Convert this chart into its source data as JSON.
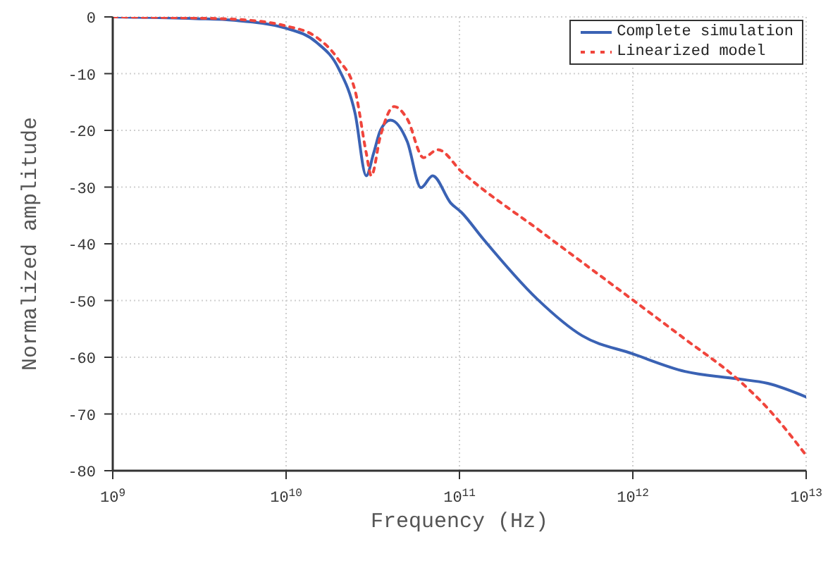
{
  "chart_data": {
    "type": "line",
    "xlabel": "Frequency (Hz)",
    "ylabel": "Normalized amplitude",
    "log": "x",
    "grid": true,
    "legend": "top right",
    "marker": "none",
    "xlim": [
      1000000000,
      10000000000000
    ],
    "xticks": [
      {
        "value": 1000000000,
        "label": "10$^{9}$"
      },
      {
        "value": 10000000000,
        "label": "10$^{10}$"
      },
      {
        "value": 100000000000,
        "label": "10$^{11}$"
      },
      {
        "value": 1000000000000,
        "label": "10$^{12}$"
      },
      {
        "value": 10000000000000,
        "label": "10$^{13}$"
      }
    ],
    "ylim": [
      -80,
      0
    ],
    "yticks": [
      -80,
      -70,
      -60,
      -50,
      -40,
      -30,
      -20,
      -10,
      0
    ],
    "series": [
      {
        "name": "Complete simulation",
        "color": "#3a62b4",
        "line_style": "solid",
        "x": [
          1000000000,
          3000000000,
          5000000000,
          10000000000,
          15000000000,
          20000000000,
          25000000000,
          29000000000,
          32000000000,
          35000000000,
          40000000000,
          50000000000,
          60000000000,
          70000000000,
          89000000000,
          103000000000,
          135000000000,
          280000000000,
          510000000000,
          1000000000000,
          2000000000000,
          4000000000000,
          6000000000000,
          10000000000000
        ],
        "values": [
          0,
          -0.3,
          -0.6,
          -2,
          -4.5,
          -9,
          -17,
          -28,
          -24,
          -20,
          -18.2,
          -22,
          -30.1,
          -28,
          -32.8,
          -34.5,
          -38.9,
          -49.7,
          -56.2,
          -59.4,
          -62.5,
          -63.8,
          -64.6,
          -67
        ]
      },
      {
        "name": "Linearized model",
        "color": "#f0453c",
        "line_style": "dotted",
        "x": [
          1000000000,
          3000000000,
          5000000000,
          10000000000,
          15000000000,
          20000000000,
          25000000000,
          29000000000,
          31000000000,
          35000000000,
          42000000000,
          50000000000,
          62000000000,
          75000000000,
          103000000000,
          300000000000,
          1000000000000,
          2000000000000,
          4000000000000,
          6000000000000,
          10000000000000
        ],
        "values": [
          0,
          -0.2,
          -0.4,
          -1.6,
          -3.6,
          -7.5,
          -13,
          -24,
          -28,
          -21,
          -15.8,
          -18,
          -24.8,
          -23.4,
          -27.3,
          -38,
          -49.9,
          -56.8,
          -63.8,
          -69,
          -77.3
        ]
      }
    ]
  }
}
